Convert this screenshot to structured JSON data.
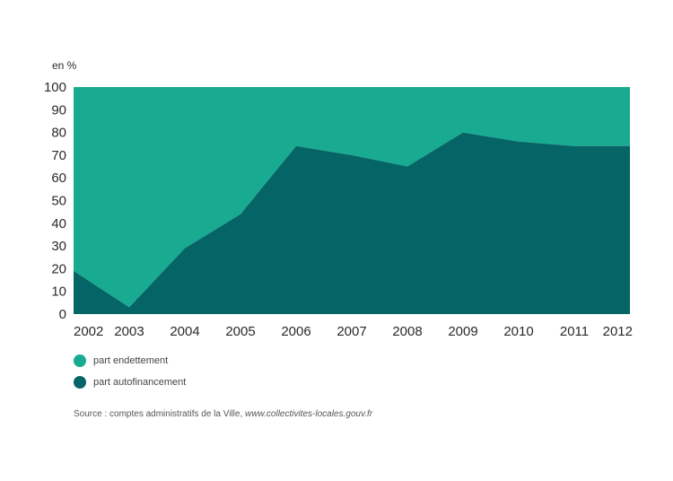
{
  "chart_data": {
    "type": "area",
    "stacked": true,
    "unit_label": "en %",
    "x": [
      "2002",
      "2003",
      "2004",
      "2005",
      "2006",
      "2007",
      "2008",
      "2009",
      "2010",
      "2011",
      "2012"
    ],
    "ylim": [
      0,
      100
    ],
    "yticks": [
      0,
      10,
      20,
      30,
      40,
      50,
      60,
      70,
      80,
      90,
      100
    ],
    "series": [
      {
        "name": "part autofinancement",
        "color": "#056466",
        "values": [
          19,
          3,
          29,
          44,
          74,
          70,
          65,
          80,
          76,
          74,
          74
        ]
      },
      {
        "name": "part endettement",
        "color": "#18ab91",
        "values": [
          81,
          97,
          71,
          56,
          26,
          30,
          35,
          20,
          24,
          26,
          26
        ]
      }
    ],
    "legend_position": "bottom-left",
    "grid": false
  },
  "legend": {
    "items": [
      {
        "label": "part endettement",
        "color": "#18ab91"
      },
      {
        "label": "part autofinancement",
        "color": "#056466"
      }
    ]
  },
  "source": {
    "prefix": "Source : comptes administratifs de la Ville,",
    "link": "www.collectivites-locales.gouv.fr"
  }
}
